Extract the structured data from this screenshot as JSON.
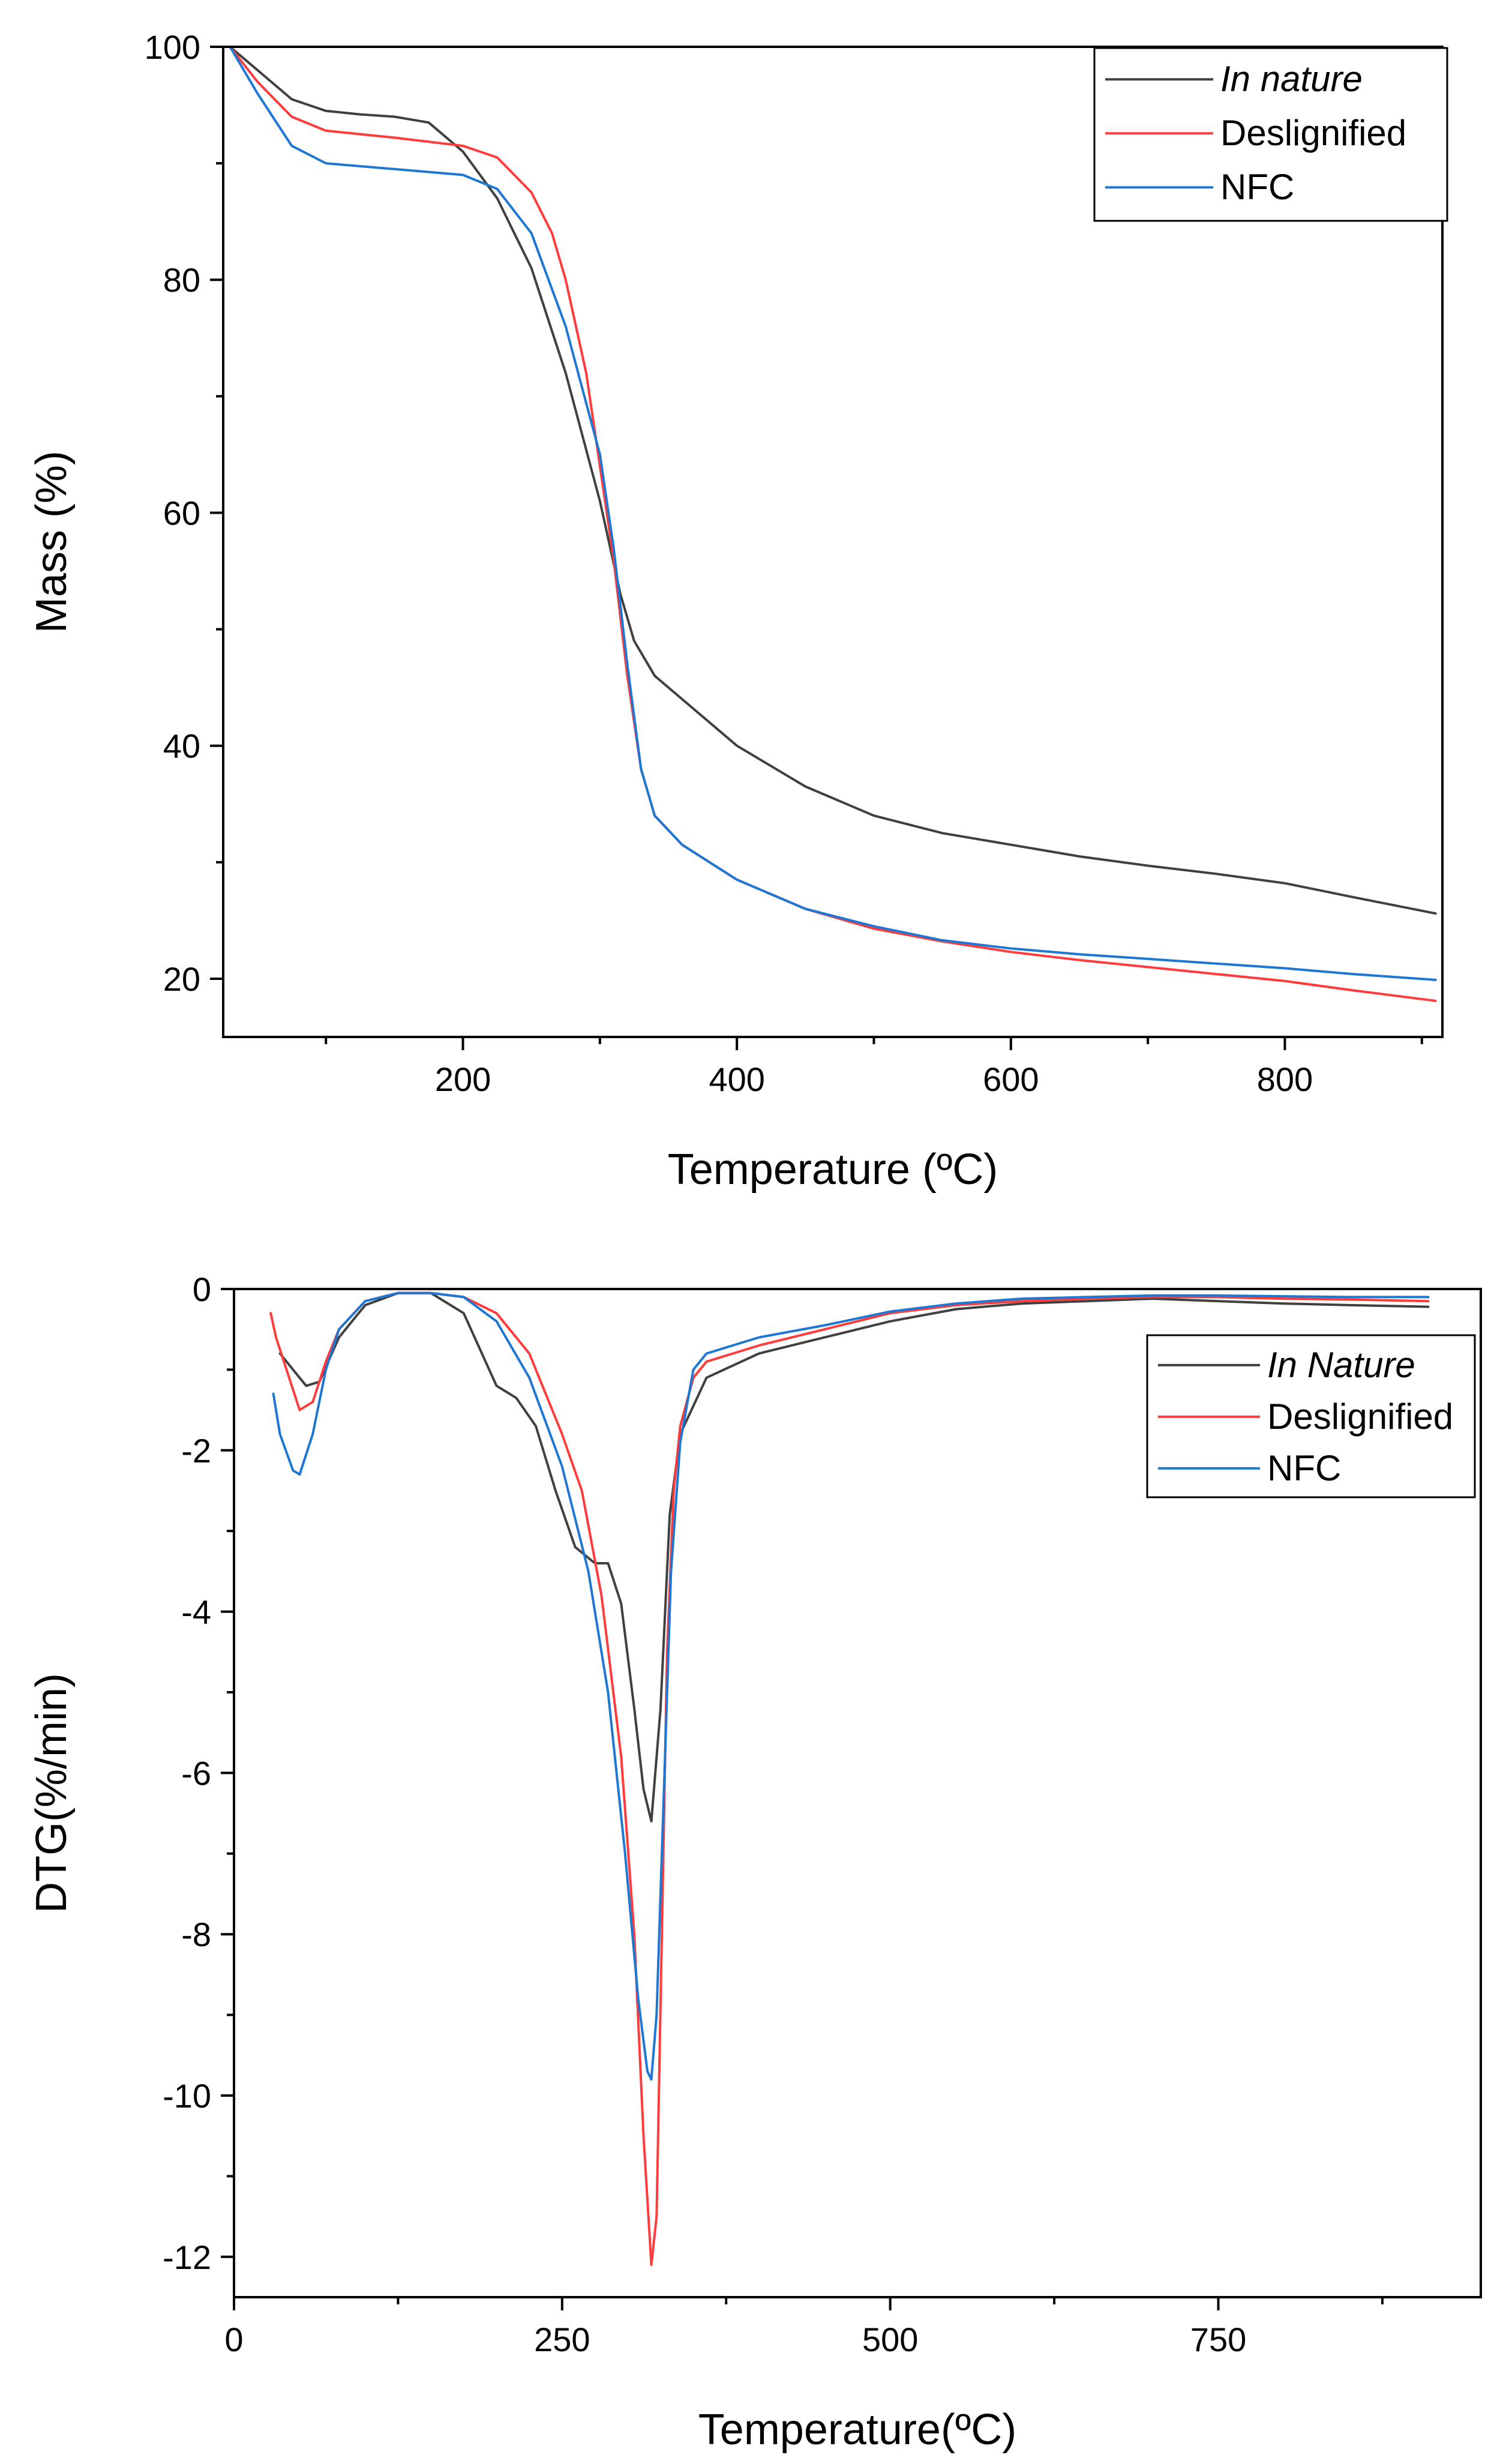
{
  "chart_data": [
    {
      "type": "line",
      "xlabel": "Temperature (ºC)",
      "ylabel": "Mass (%)",
      "xlim": [
        25,
        915
      ],
      "ylim": [
        15,
        100
      ],
      "xticks": [
        200,
        400,
        600,
        800
      ],
      "xtick_labels": [
        "200",
        "400",
        "600",
        "800"
      ],
      "yticks": [
        20,
        40,
        60,
        80,
        100
      ],
      "ytick_labels": [
        "20",
        "40",
        "60",
        "80",
        "100"
      ],
      "legend_position": "top-right",
      "series": [
        {
          "name": "In nature",
          "color": "#404040",
          "italic": true,
          "x": [
            30,
            50,
            75,
            100,
            125,
            150,
            175,
            200,
            225,
            250,
            275,
            300,
            315,
            325,
            340,
            360,
            400,
            450,
            500,
            550,
            600,
            650,
            700,
            750,
            800,
            850,
            910
          ],
          "y": [
            100,
            98,
            95.5,
            94.5,
            94.2,
            94,
            93.5,
            91,
            87,
            81,
            72,
            61,
            53,
            49,
            46,
            44,
            40,
            36.5,
            34,
            32.5,
            31.5,
            30.5,
            29.7,
            29,
            28.2,
            27,
            25.6
          ]
        },
        {
          "name": "Deslignified",
          "color": "#ff3b3b",
          "italic": false,
          "x": [
            30,
            50,
            75,
            100,
            150,
            200,
            225,
            250,
            265,
            275,
            290,
            300,
            310,
            320,
            330,
            340,
            360,
            400,
            450,
            500,
            550,
            600,
            650,
            700,
            750,
            800,
            850,
            910
          ],
          "y": [
            100,
            97,
            94,
            92.8,
            92.2,
            91.5,
            90.5,
            87.5,
            84,
            80,
            72,
            64,
            56,
            46,
            38,
            34,
            31.5,
            28.5,
            26,
            24.3,
            23.2,
            22.3,
            21.6,
            21,
            20.4,
            19.8,
            19,
            18.1
          ]
        },
        {
          "name": "NFC",
          "color": "#1f77d4",
          "italic": false,
          "x": [
            30,
            50,
            75,
            100,
            150,
            200,
            225,
            250,
            275,
            300,
            310,
            320,
            330,
            340,
            360,
            400,
            450,
            500,
            550,
            600,
            650,
            700,
            750,
            800,
            850,
            910
          ],
          "y": [
            100,
            96,
            91.5,
            90,
            89.5,
            89,
            87.8,
            84,
            76,
            65,
            57,
            47,
            38,
            34,
            31.5,
            28.5,
            26,
            24.5,
            23.3,
            22.6,
            22.1,
            21.7,
            21.3,
            20.9,
            20.4,
            19.9
          ]
        }
      ]
    },
    {
      "type": "line",
      "xlabel": "Temperature(ºC)",
      "ylabel": "DTG(%/min)",
      "xlim": [
        0,
        950
      ],
      "ylim": [
        -12.5,
        0
      ],
      "xticks": [
        0,
        250,
        500,
        750
      ],
      "xtick_labels": [
        "0",
        "250",
        "500",
        "750"
      ],
      "yticks": [
        0,
        -2,
        -4,
        -6,
        -8,
        -10,
        -12
      ],
      "ytick_labels": [
        "0",
        "-2",
        "-4",
        "-6",
        "-8",
        "-10",
        "-12"
      ],
      "legend_position": "top-right",
      "series": [
        {
          "name": "In Nature",
          "color": "#404040",
          "italic": true,
          "x": [
            35,
            45,
            55,
            65,
            80,
            100,
            125,
            150,
            175,
            200,
            215,
            230,
            245,
            260,
            275,
            285,
            295,
            305,
            312,
            318,
            325,
            332,
            340,
            360,
            400,
            450,
            500,
            550,
            600,
            650,
            700,
            750,
            800,
            850,
            910
          ],
          "y": [
            -0.8,
            -1.0,
            -1.2,
            -1.15,
            -0.6,
            -0.2,
            -0.05,
            -0.05,
            -0.3,
            -1.2,
            -1.35,
            -1.7,
            -2.5,
            -3.2,
            -3.4,
            -3.4,
            -3.9,
            -5.2,
            -6.2,
            -6.6,
            -5.2,
            -2.8,
            -1.8,
            -1.1,
            -0.8,
            -0.6,
            -0.4,
            -0.25,
            -0.18,
            -0.15,
            -0.12,
            -0.15,
            -0.18,
            -0.2,
            -0.22
          ]
        },
        {
          "name": "Deslignified",
          "color": "#ff3b3b",
          "italic": false,
          "x": [
            28,
            32,
            40,
            50,
            60,
            70,
            80,
            100,
            125,
            150,
            175,
            200,
            225,
            250,
            265,
            280,
            295,
            305,
            312,
            318,
            322,
            326,
            330,
            335,
            340,
            350,
            360,
            400,
            450,
            500,
            550,
            600,
            650,
            700,
            750,
            800,
            850,
            910
          ],
          "y": [
            -0.3,
            -0.6,
            -1.0,
            -1.5,
            -1.4,
            -0.9,
            -0.5,
            -0.15,
            -0.05,
            -0.05,
            -0.1,
            -0.3,
            -0.8,
            -1.8,
            -2.5,
            -3.8,
            -5.8,
            -8,
            -10.5,
            -12.1,
            -11.5,
            -8,
            -4.5,
            -2.5,
            -1.7,
            -1.1,
            -0.9,
            -0.7,
            -0.5,
            -0.3,
            -0.2,
            -0.15,
            -0.12,
            -0.1,
            -0.1,
            -0.12,
            -0.13,
            -0.15
          ]
        },
        {
          "name": "NFC",
          "color": "#1f77d4",
          "italic": false,
          "x": [
            30,
            35,
            45,
            50,
            60,
            70,
            80,
            100,
            125,
            150,
            175,
            200,
            225,
            250,
            270,
            285,
            298,
            308,
            315,
            318,
            322,
            327,
            333,
            340,
            350,
            360,
            400,
            450,
            500,
            550,
            600,
            650,
            700,
            750,
            800,
            850,
            910
          ],
          "y": [
            -1.3,
            -1.8,
            -2.25,
            -2.3,
            -1.8,
            -1.0,
            -0.5,
            -0.15,
            -0.05,
            -0.05,
            -0.1,
            -0.4,
            -1.1,
            -2.2,
            -3.5,
            -5,
            -7,
            -8.8,
            -9.7,
            -9.8,
            -9.0,
            -6.5,
            -3.5,
            -1.9,
            -1.0,
            -0.8,
            -0.6,
            -0.45,
            -0.28,
            -0.18,
            -0.12,
            -0.1,
            -0.08,
            -0.08,
            -0.09,
            -0.1,
            -0.1
          ]
        }
      ]
    }
  ]
}
